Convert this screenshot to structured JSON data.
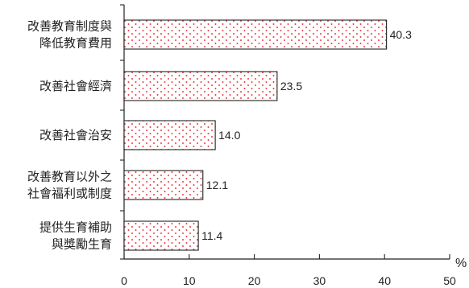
{
  "chart_data": {
    "type": "bar",
    "orientation": "horizontal",
    "categories": [
      [
        "改善教育制度與",
        "降低教育費用"
      ],
      [
        "改善社會經濟"
      ],
      [
        "改善社會治安"
      ],
      [
        "改善教育以外之",
        "社會福利或制度"
      ],
      [
        "提供生育補助",
        "與獎勵生育"
      ]
    ],
    "values": [
      40.3,
      23.5,
      14.0,
      12.1,
      11.4
    ],
    "value_labels": [
      "40.3",
      "23.5",
      "14.0",
      "12.1",
      "11.4"
    ],
    "xlim": [
      0,
      50
    ],
    "x_ticks": [
      "0",
      "10",
      "20",
      "30",
      "40",
      "50"
    ],
    "x_unit": "%",
    "grid": false,
    "legend": "none"
  },
  "colors": {
    "bar_fill": "#ffffff",
    "bar_dots": "#e8323c",
    "bar_stroke": "#222222",
    "axis": "#222222"
  }
}
